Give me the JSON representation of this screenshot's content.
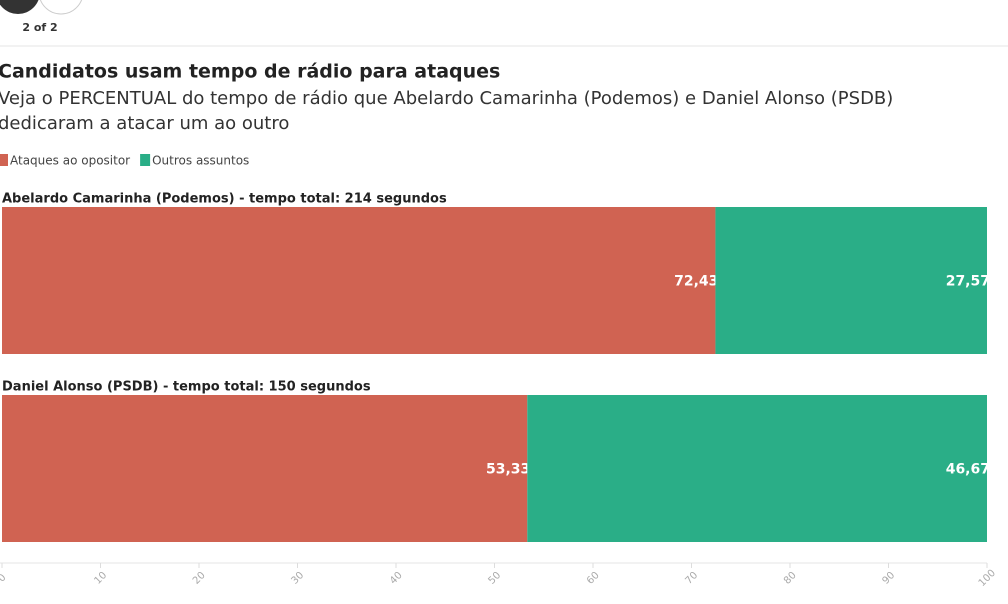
{
  "pager": "2 of 2",
  "chart_data": {
    "type": "stacked-bar-horizontal",
    "title": "Candidatos usam tempo de rádio para ataques",
    "subtitle": "Veja o PERCENTUAL do tempo de rádio que Abelardo Camarinha (Podemos) e Daniel Alonso (PSDB) dedicaram a atacar um ao outro",
    "categories": [
      "Abelardo Camarinha (Podemos) - tempo total: 214 segundos",
      "Daniel Alonso (PSDB) - tempo total: 150 segundos"
    ],
    "series": [
      {
        "name": "Ataques ao opositor",
        "color": "#d06352",
        "values": [
          72.43,
          53.33
        ],
        "value_labels": [
          "72,43",
          "53,33"
        ]
      },
      {
        "name": "Outros assuntos",
        "color": "#2aae87",
        "values": [
          27.57,
          46.67
        ],
        "value_labels": [
          "27,57",
          "46,67"
        ]
      }
    ],
    "xlim": [
      0,
      100
    ],
    "xticks": [
      0,
      10,
      20,
      30,
      40,
      50,
      60,
      70,
      80,
      90,
      100
    ]
  }
}
